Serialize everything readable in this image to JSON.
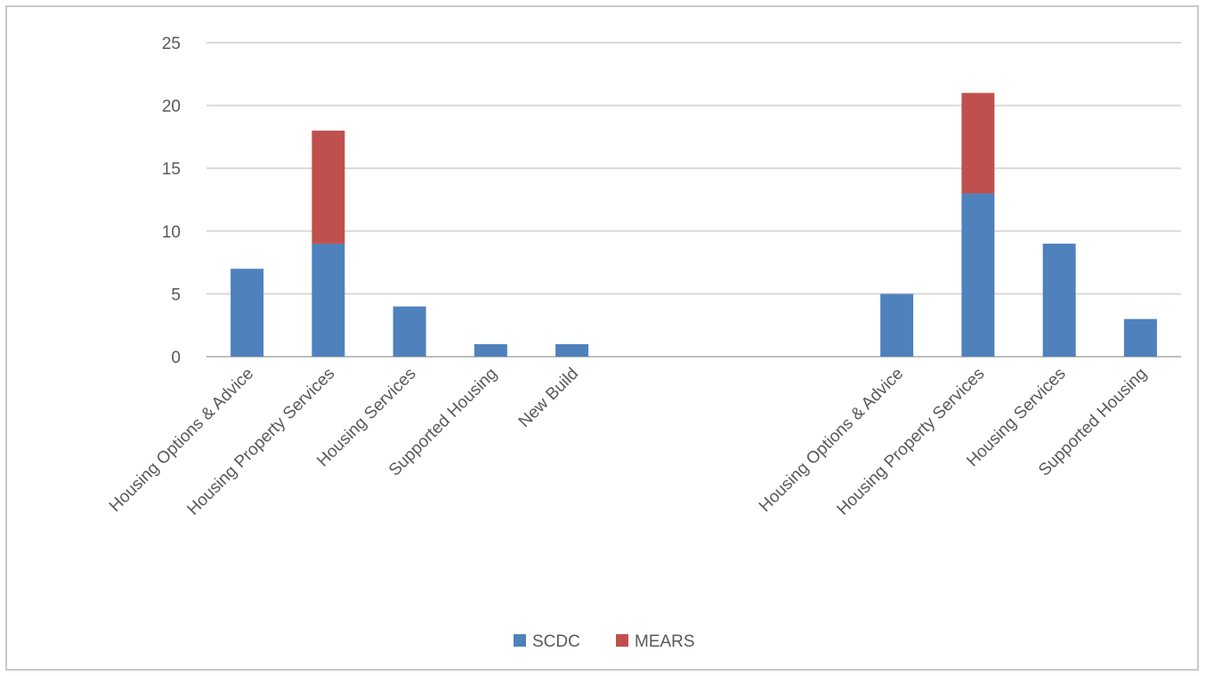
{
  "chart_data": {
    "type": "bar",
    "stacked": true,
    "categories": [
      "Housing Options & Advice",
      "Housing Property Services",
      "Housing Services",
      "Supported Housing",
      "New Build",
      "",
      "",
      "",
      "Housing Options & Advice",
      "Housing Property Services",
      "Housing Services",
      "Supported Housing"
    ],
    "series": [
      {
        "name": "SCDC",
        "color": "#4f81bd",
        "values": [
          7,
          9,
          4,
          1,
          1,
          0,
          0,
          0,
          5,
          13,
          9,
          3
        ]
      },
      {
        "name": "MEARS",
        "color": "#c0504d",
        "values": [
          0,
          9,
          0,
          0,
          0,
          0,
          0,
          0,
          0,
          8,
          0,
          0
        ]
      }
    ],
    "ylim": [
      0,
      25
    ],
    "yticks": [
      0,
      5,
      10,
      15,
      20,
      25
    ],
    "title": "",
    "xlabel": "",
    "ylabel": "",
    "grid": true,
    "legend_position": "bottom"
  }
}
